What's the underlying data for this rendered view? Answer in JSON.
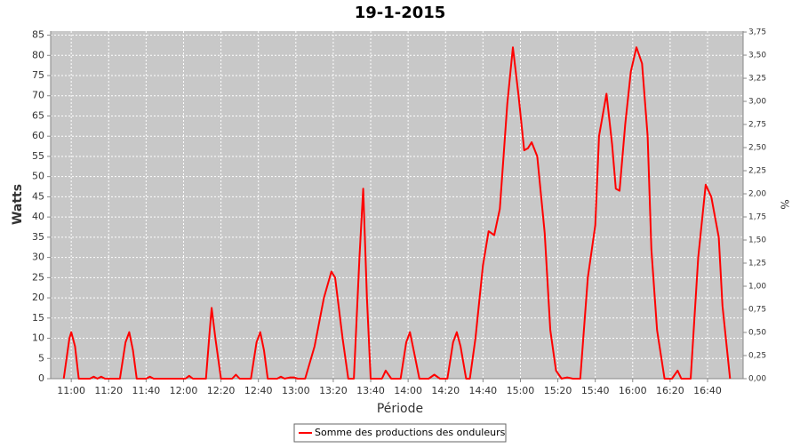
{
  "chart_data": {
    "type": "line",
    "title": "19-1-2015",
    "x_label": "Période",
    "y_label": "Watts",
    "y2_label": "%",
    "x": [
      "10:56",
      "10:59",
      "11:00",
      "11:02",
      "11:04",
      "11:10",
      "11:12",
      "11:14",
      "11:16",
      "11:18",
      "11:26",
      "11:29",
      "11:31",
      "11:33",
      "11:35",
      "11:40",
      "11:42",
      "11:44",
      "12:01",
      "12:03",
      "12:05",
      "12:12",
      "12:14",
      "12:15",
      "12:17",
      "12:20",
      "12:26",
      "12:28",
      "12:30",
      "12:36",
      "12:39",
      "12:41",
      "12:43",
      "12:45",
      "12:50",
      "12:52",
      "12:54",
      "12:57",
      "12:59",
      "13:01",
      "13:05",
      "13:10",
      "13:15",
      "13:19",
      "13:21",
      "13:25",
      "13:28",
      "13:31",
      "13:34",
      "13:36",
      "13:38",
      "13:40",
      "13:46",
      "13:48",
      "13:51",
      "13:56",
      "13:59",
      "14:01",
      "14:03",
      "14:06",
      "14:11",
      "14:14",
      "14:17",
      "14:21",
      "14:24",
      "14:26",
      "14:28",
      "14:31",
      "14:33",
      "14:36",
      "14:40",
      "14:43",
      "14:46",
      "14:49",
      "14:53",
      "14:56",
      "14:59",
      "15:02",
      "15:04",
      "15:06",
      "15:09",
      "15:13",
      "15:16",
      "15:19",
      "15:22",
      "15:25",
      "15:28",
      "15:32",
      "15:36",
      "15:40",
      "15:42",
      "15:46",
      "15:49",
      "15:51",
      "15:53",
      "15:56",
      "15:59",
      "16:02",
      "16:05",
      "16:08",
      "16:10",
      "16:13",
      "16:17",
      "16:21",
      "16:24",
      "16:26",
      "16:31",
      "16:35",
      "16:39",
      "16:42",
      "16:46",
      "16:48",
      "16:52"
    ],
    "series": [
      {
        "name": "Somme des productions des onduleurs",
        "color": "#ff0000",
        "values": [
          0,
          10,
          11.5,
          8,
          0,
          0,
          0.5,
          0,
          0.5,
          0,
          0,
          9,
          11.5,
          7,
          0,
          0,
          0.5,
          0,
          0,
          0.7,
          0,
          0,
          12,
          17.5,
          10,
          0,
          0,
          1,
          0,
          0,
          9,
          11.5,
          7,
          0,
          0,
          0.5,
          0,
          0.3,
          0.3,
          0,
          0,
          8,
          20,
          26.5,
          25,
          10,
          0,
          0,
          30,
          47,
          20,
          0,
          0,
          2,
          0,
          0,
          9,
          11.5,
          7,
          0,
          0,
          1,
          0,
          0,
          9,
          11.5,
          8,
          0,
          0,
          10,
          28,
          36.5,
          35.5,
          42,
          68,
          82,
          70,
          56.5,
          57,
          58.5,
          55,
          36,
          12,
          2,
          0,
          0.3,
          0,
          0,
          25,
          38,
          60,
          70.5,
          58,
          47,
          46.5,
          63,
          76,
          82,
          78,
          60,
          32,
          12,
          0,
          0,
          2,
          0,
          0,
          30,
          48,
          45,
          35,
          18,
          0
        ]
      }
    ],
    "xlim": [
      "10:49",
      "16:59"
    ],
    "xticks": [
      "11:00",
      "11:20",
      "11:40",
      "12:00",
      "12:20",
      "12:40",
      "13:00",
      "13:20",
      "13:40",
      "14:00",
      "14:20",
      "14:40",
      "15:00",
      "15:20",
      "15:40",
      "16:00",
      "16:20",
      "16:40"
    ],
    "ylim": [
      0,
      86
    ],
    "yticks": [
      0,
      5,
      10,
      15,
      20,
      25,
      30,
      35,
      40,
      45,
      50,
      55,
      60,
      65,
      70,
      75,
      80,
      85
    ],
    "y2lim": [
      0,
      3.76
    ],
    "y2ticks": [
      {
        "value": 0,
        "label": "0,00"
      },
      {
        "value": 0.25,
        "label": "0,25"
      },
      {
        "value": 0.5,
        "label": "0,50"
      },
      {
        "value": 0.75,
        "label": "0,75"
      },
      {
        "value": 1,
        "label": "1,00"
      },
      {
        "value": 1.25,
        "label": "1,25"
      },
      {
        "value": 1.5,
        "label": "1,50"
      },
      {
        "value": 1.75,
        "label": "1,75"
      },
      {
        "value": 2,
        "label": "2,00"
      },
      {
        "value": 2.25,
        "label": "2,25"
      },
      {
        "value": 2.5,
        "label": "2,50"
      },
      {
        "value": 2.75,
        "label": "2,75"
      },
      {
        "value": 3,
        "label": "3,00"
      },
      {
        "value": 3.25,
        "label": "3,25"
      },
      {
        "value": 3.5,
        "label": "3,50"
      },
      {
        "value": 3.75,
        "label": "3,75"
      }
    ],
    "grid": true,
    "legend": "bottom"
  }
}
